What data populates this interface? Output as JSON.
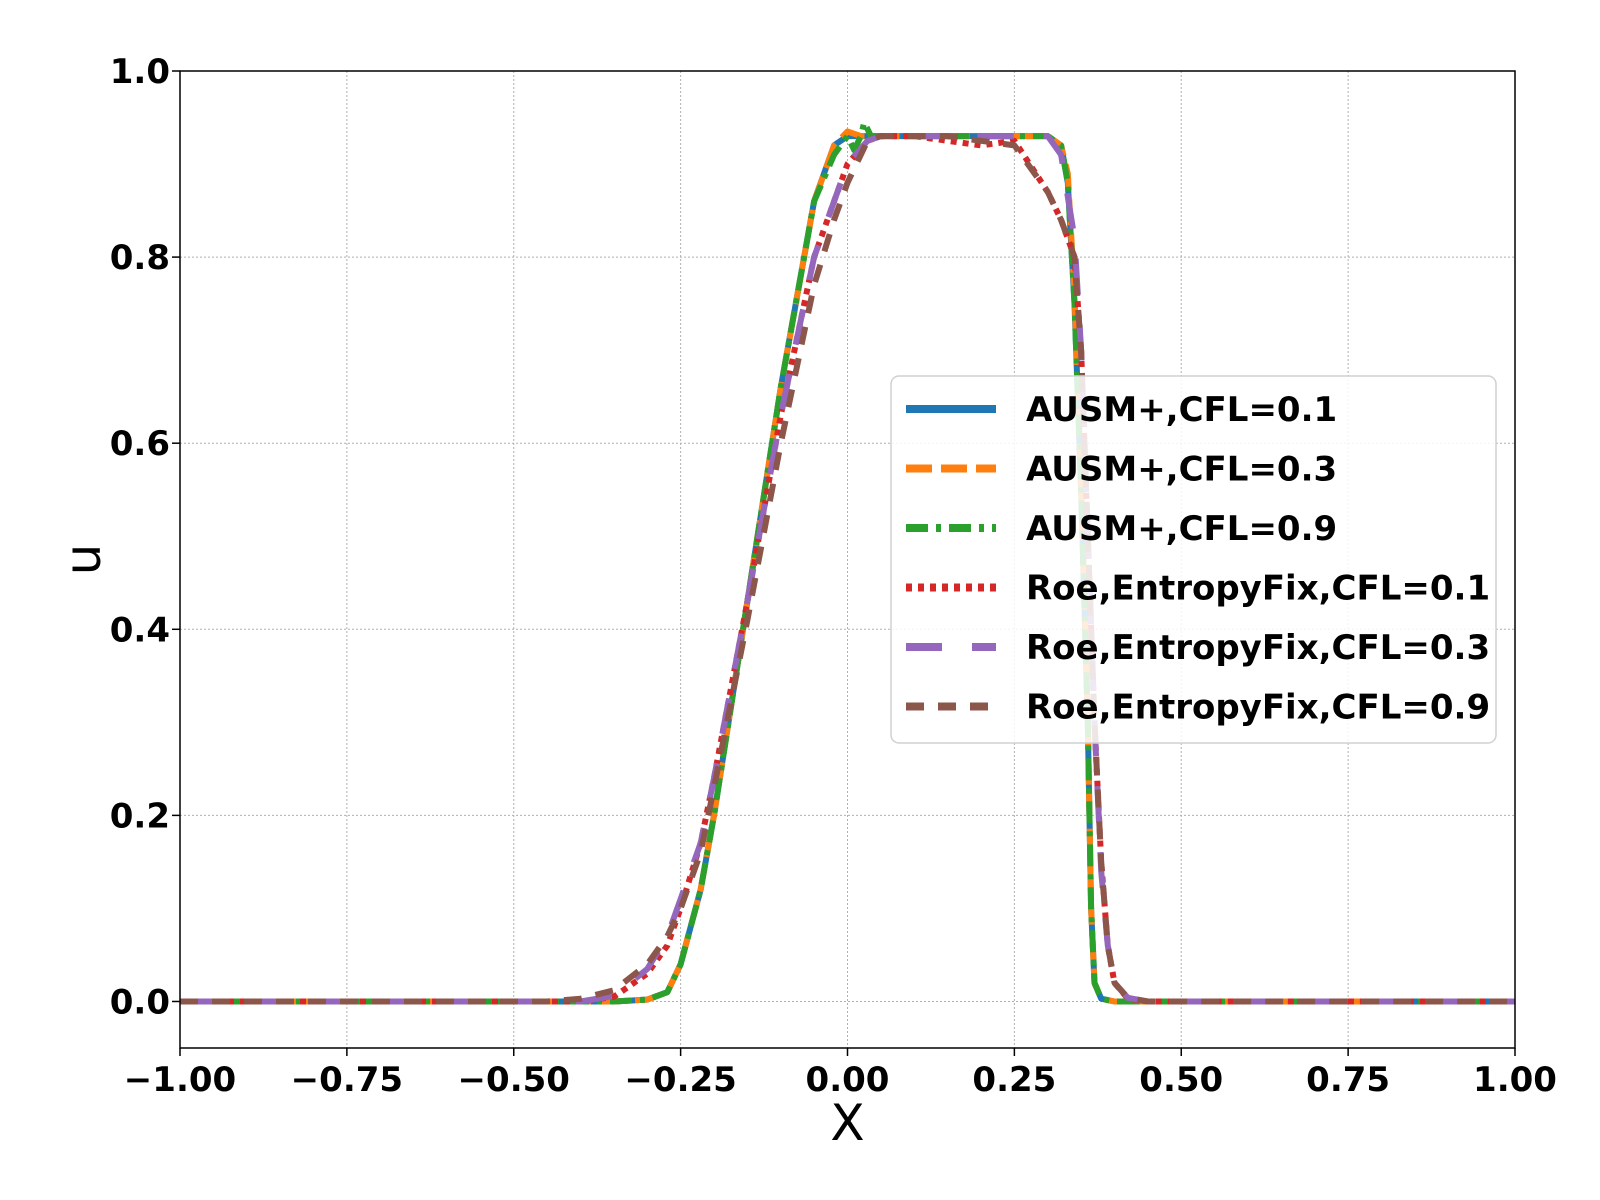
{
  "chart_data": {
    "type": "line",
    "xlabel": "X",
    "ylabel": "u",
    "xlim": [
      -1.0,
      1.0
    ],
    "ylim": [
      -0.05,
      1.0
    ],
    "xticks": [
      "−1.00",
      "−0.75",
      "−0.50",
      "−0.25",
      "0.00",
      "0.25",
      "0.50",
      "0.75",
      "1.00"
    ],
    "xtick_values": [
      -1.0,
      -0.75,
      -0.5,
      -0.25,
      0.0,
      0.25,
      0.5,
      0.75,
      1.0
    ],
    "yticks": [
      "0.0",
      "0.2",
      "0.4",
      "0.6",
      "0.8",
      "1.0"
    ],
    "ytick_values": [
      0.0,
      0.2,
      0.4,
      0.6,
      0.8,
      1.0
    ],
    "grid": true,
    "legend_position": "center-right",
    "series": [
      {
        "name": "AUSM+,CFL=0.1",
        "color": "#1f77b4",
        "dash": "solid",
        "x": [
          -1.0,
          -0.35,
          -0.3,
          -0.27,
          -0.25,
          -0.22,
          -0.2,
          -0.15,
          -0.1,
          -0.05,
          -0.02,
          0.0,
          0.02,
          0.05,
          0.1,
          0.2,
          0.3,
          0.32,
          0.33,
          0.34,
          0.35,
          0.36,
          0.365,
          0.37,
          0.38,
          0.4,
          0.5,
          1.0
        ],
        "y": [
          0.0,
          0.0,
          0.002,
          0.01,
          0.04,
          0.12,
          0.2,
          0.43,
          0.66,
          0.86,
          0.92,
          0.93,
          0.93,
          0.93,
          0.93,
          0.93,
          0.93,
          0.92,
          0.88,
          0.75,
          0.55,
          0.3,
          0.1,
          0.02,
          0.003,
          0.0,
          0.0,
          0.0
        ]
      },
      {
        "name": "AUSM+,CFL=0.3",
        "color": "#ff7f0e",
        "dash": "long",
        "x": [
          -1.0,
          -0.35,
          -0.3,
          -0.27,
          -0.25,
          -0.22,
          -0.2,
          -0.15,
          -0.1,
          -0.05,
          -0.02,
          0.0,
          0.02,
          0.05,
          0.1,
          0.2,
          0.3,
          0.32,
          0.33,
          0.34,
          0.35,
          0.36,
          0.365,
          0.37,
          0.38,
          0.4,
          0.5,
          1.0
        ],
        "y": [
          0.0,
          0.0,
          0.002,
          0.01,
          0.04,
          0.12,
          0.2,
          0.43,
          0.66,
          0.86,
          0.92,
          0.935,
          0.93,
          0.93,
          0.93,
          0.93,
          0.93,
          0.92,
          0.89,
          0.76,
          0.56,
          0.3,
          0.1,
          0.02,
          0.003,
          0.0,
          0.0,
          0.0
        ]
      },
      {
        "name": "AUSM+,CFL=0.9",
        "color": "#2ca02c",
        "dash": "dashdot",
        "x": [
          -1.0,
          -0.35,
          -0.3,
          -0.27,
          -0.25,
          -0.22,
          -0.2,
          -0.15,
          -0.1,
          -0.05,
          -0.02,
          0.0,
          0.01,
          0.02,
          0.025,
          0.035,
          0.05,
          0.1,
          0.2,
          0.3,
          0.32,
          0.33,
          0.34,
          0.35,
          0.36,
          0.365,
          0.37,
          0.38,
          0.4,
          0.5,
          1.0
        ],
        "y": [
          0.0,
          0.0,
          0.002,
          0.01,
          0.04,
          0.12,
          0.2,
          0.43,
          0.66,
          0.86,
          0.91,
          0.93,
          0.915,
          0.93,
          0.945,
          0.93,
          0.93,
          0.93,
          0.93,
          0.93,
          0.92,
          0.88,
          0.75,
          0.55,
          0.3,
          0.1,
          0.02,
          0.003,
          0.0,
          0.0,
          0.0
        ]
      },
      {
        "name": "Roe,EntropyFix,CFL=0.1",
        "color": "#d62728",
        "dash": "dotted",
        "x": [
          -1.0,
          -0.4,
          -0.35,
          -0.3,
          -0.27,
          -0.25,
          -0.22,
          -0.2,
          -0.15,
          -0.1,
          -0.05,
          0.0,
          0.03,
          0.05,
          0.1,
          0.15,
          0.2,
          0.25,
          0.3,
          0.32,
          0.34,
          0.35,
          0.36,
          0.37,
          0.38,
          0.39,
          0.4,
          0.42,
          0.45,
          1.0
        ],
        "y": [
          0.0,
          0.0,
          0.005,
          0.03,
          0.06,
          0.1,
          0.17,
          0.24,
          0.43,
          0.63,
          0.8,
          0.9,
          0.925,
          0.93,
          0.93,
          0.925,
          0.92,
          0.925,
          0.87,
          0.84,
          0.8,
          0.7,
          0.5,
          0.3,
          0.15,
          0.06,
          0.02,
          0.003,
          0.0,
          0.0
        ]
      },
      {
        "name": "Roe,EntropyFix,CFL=0.3",
        "color": "#9467bd",
        "dash": "loosedash",
        "x": [
          -1.0,
          -0.4,
          -0.35,
          -0.3,
          -0.27,
          -0.25,
          -0.22,
          -0.2,
          -0.15,
          -0.1,
          -0.05,
          -0.02,
          0.0,
          0.03,
          0.05,
          0.1,
          0.2,
          0.3,
          0.32,
          0.34,
          0.35,
          0.36,
          0.37,
          0.38,
          0.39,
          0.4,
          0.42,
          0.45,
          1.0
        ],
        "y": [
          0.0,
          0.0,
          0.006,
          0.035,
          0.07,
          0.11,
          0.17,
          0.24,
          0.43,
          0.63,
          0.8,
          0.86,
          0.9,
          0.925,
          0.93,
          0.93,
          0.93,
          0.93,
          0.91,
          0.82,
          0.7,
          0.5,
          0.3,
          0.14,
          0.06,
          0.02,
          0.004,
          0.0,
          0.0
        ]
      },
      {
        "name": "Roe,EntropyFix,CFL=0.9",
        "color": "#8c564b",
        "dash": "bigdash",
        "x": [
          -1.0,
          -0.45,
          -0.4,
          -0.35,
          -0.3,
          -0.27,
          -0.25,
          -0.22,
          -0.2,
          -0.15,
          -0.1,
          -0.05,
          -0.02,
          0.0,
          0.03,
          0.05,
          0.1,
          0.15,
          0.2,
          0.25,
          0.3,
          0.32,
          0.34,
          0.35,
          0.36,
          0.37,
          0.38,
          0.39,
          0.4,
          0.42,
          0.45,
          1.0
        ],
        "y": [
          0.0,
          0.0,
          0.003,
          0.012,
          0.04,
          0.07,
          0.1,
          0.16,
          0.23,
          0.41,
          0.6,
          0.77,
          0.84,
          0.88,
          0.925,
          0.93,
          0.93,
          0.93,
          0.925,
          0.92,
          0.87,
          0.84,
          0.8,
          0.7,
          0.5,
          0.3,
          0.15,
          0.06,
          0.02,
          0.004,
          0.0,
          0.0
        ]
      }
    ]
  }
}
